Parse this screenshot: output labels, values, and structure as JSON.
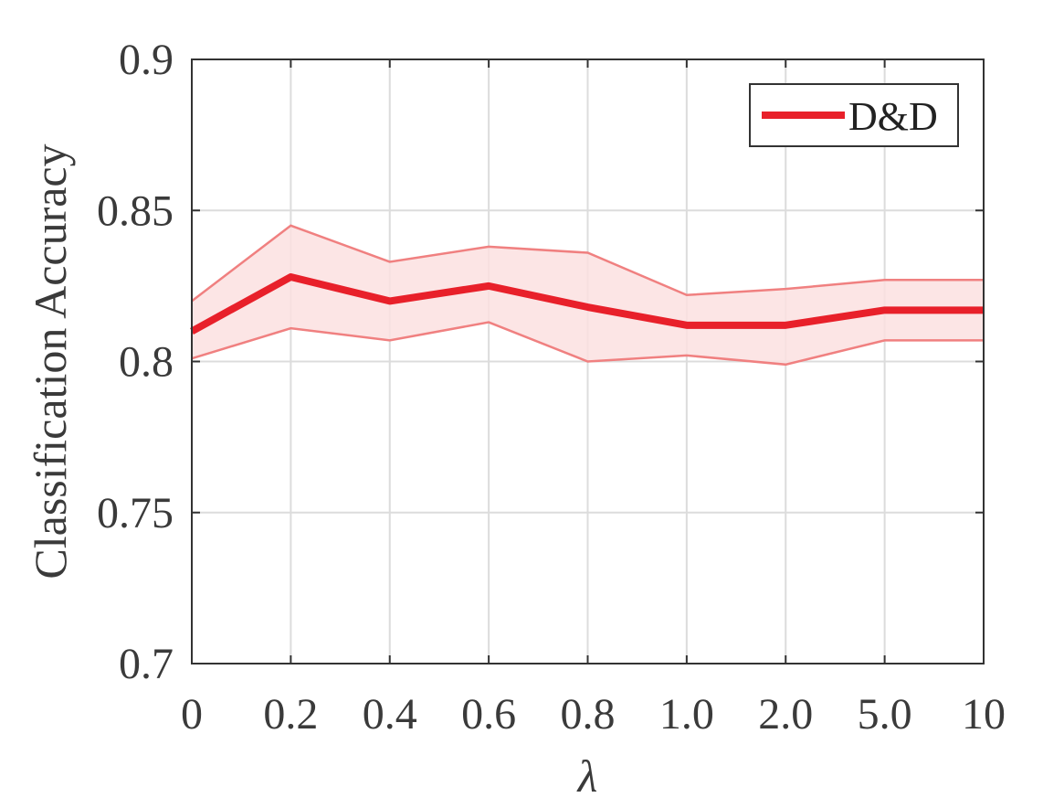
{
  "chart_data": {
    "type": "line",
    "xlabel": "λ",
    "ylabel": "Classification Accuracy",
    "categories": [
      "0",
      "0.2",
      "0.4",
      "0.6",
      "0.8",
      "1.0",
      "2.0",
      "5.0",
      "10"
    ],
    "ylim": [
      0.7,
      0.9
    ],
    "yticks": [
      "0.7",
      "0.75",
      "0.8",
      "0.85",
      "0.9"
    ],
    "grid": true,
    "legend_position": "top-right",
    "series": [
      {
        "name": "D&D",
        "color": "#e8202a",
        "band_fill": "#fbe0e0",
        "band_edge": "#f08080",
        "values": [
          0.81,
          0.828,
          0.82,
          0.825,
          0.818,
          0.812,
          0.812,
          0.817,
          0.817
        ],
        "upper": [
          0.82,
          0.845,
          0.833,
          0.838,
          0.836,
          0.822,
          0.824,
          0.827,
          0.827
        ],
        "lower": [
          0.801,
          0.811,
          0.807,
          0.813,
          0.8,
          0.802,
          0.799,
          0.807,
          0.807
        ]
      }
    ]
  }
}
